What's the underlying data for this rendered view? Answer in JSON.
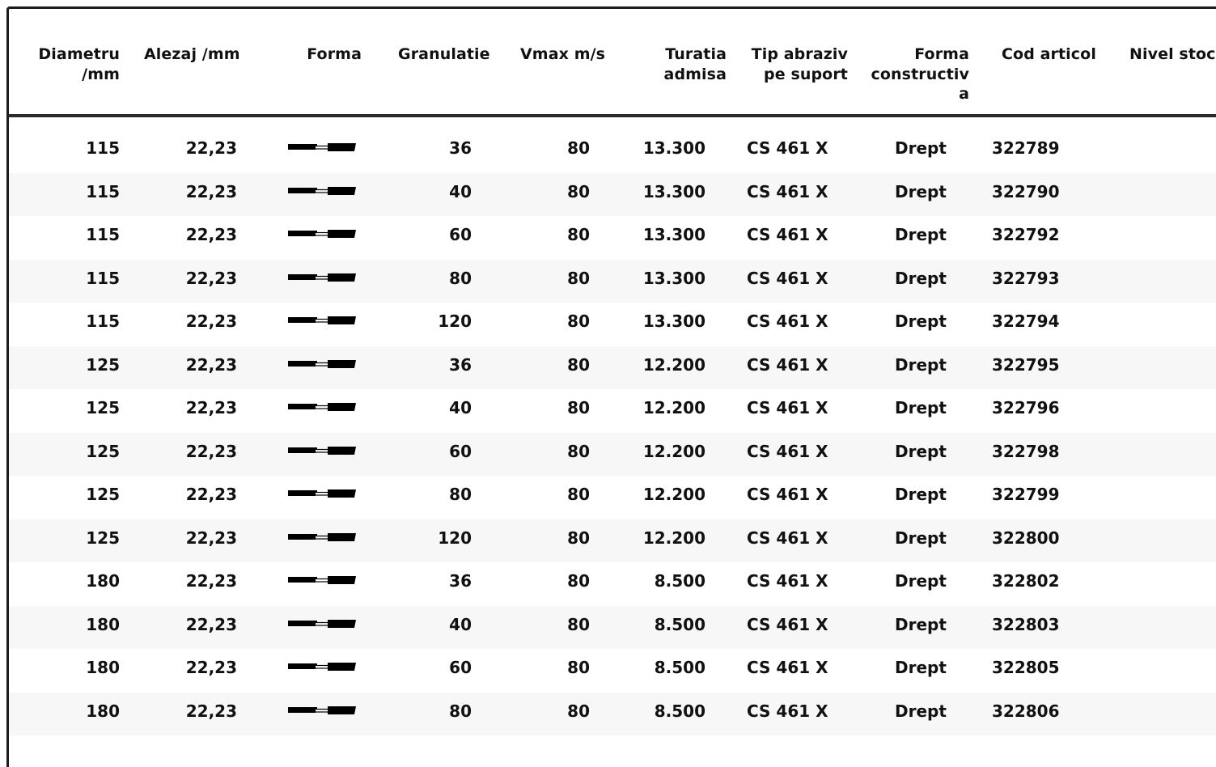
{
  "table": {
    "headers": {
      "diametru": "Diametru\n/mm",
      "alezaj": "Alezaj /mm",
      "forma": "Forma",
      "granulatie": "Granulatie",
      "vmax": "Vmax m/s",
      "turatia": "Turatia\nadmisa",
      "tip_abraziv": "Tip abraziv\npe suport",
      "forma_constructiva": "Forma\nconstructiv\na",
      "cod_articol": "Cod articol",
      "nivel_stoc": "Nivel stoc"
    },
    "forma_icon": "flat-flap-disc-profile-icon",
    "rows": [
      {
        "diametru": "115",
        "alezaj": "22,23",
        "granulatie": "36",
        "vmax": "80",
        "turatia": "13.300",
        "tip": "CS 461 X",
        "forma_c": "Drept",
        "cod": "322789",
        "stoc": ""
      },
      {
        "diametru": "115",
        "alezaj": "22,23",
        "granulatie": "40",
        "vmax": "80",
        "turatia": "13.300",
        "tip": "CS 461 X",
        "forma_c": "Drept",
        "cod": "322790",
        "stoc": ""
      },
      {
        "diametru": "115",
        "alezaj": "22,23",
        "granulatie": "60",
        "vmax": "80",
        "turatia": "13.300",
        "tip": "CS 461 X",
        "forma_c": "Drept",
        "cod": "322792",
        "stoc": ""
      },
      {
        "diametru": "115",
        "alezaj": "22,23",
        "granulatie": "80",
        "vmax": "80",
        "turatia": "13.300",
        "tip": "CS 461 X",
        "forma_c": "Drept",
        "cod": "322793",
        "stoc": ""
      },
      {
        "diametru": "115",
        "alezaj": "22,23",
        "granulatie": "120",
        "vmax": "80",
        "turatia": "13.300",
        "tip": "CS 461 X",
        "forma_c": "Drept",
        "cod": "322794",
        "stoc": ""
      },
      {
        "diametru": "125",
        "alezaj": "22,23",
        "granulatie": "36",
        "vmax": "80",
        "turatia": "12.200",
        "tip": "CS 461 X",
        "forma_c": "Drept",
        "cod": "322795",
        "stoc": ""
      },
      {
        "diametru": "125",
        "alezaj": "22,23",
        "granulatie": "40",
        "vmax": "80",
        "turatia": "12.200",
        "tip": "CS 461 X",
        "forma_c": "Drept",
        "cod": "322796",
        "stoc": ""
      },
      {
        "diametru": "125",
        "alezaj": "22,23",
        "granulatie": "60",
        "vmax": "80",
        "turatia": "12.200",
        "tip": "CS 461 X",
        "forma_c": "Drept",
        "cod": "322798",
        "stoc": ""
      },
      {
        "diametru": "125",
        "alezaj": "22,23",
        "granulatie": "80",
        "vmax": "80",
        "turatia": "12.200",
        "tip": "CS 461 X",
        "forma_c": "Drept",
        "cod": "322799",
        "stoc": ""
      },
      {
        "diametru": "125",
        "alezaj": "22,23",
        "granulatie": "120",
        "vmax": "80",
        "turatia": "12.200",
        "tip": "CS 461 X",
        "forma_c": "Drept",
        "cod": "322800",
        "stoc": ""
      },
      {
        "diametru": "180",
        "alezaj": "22,23",
        "granulatie": "36",
        "vmax": "80",
        "turatia": "8.500",
        "tip": "CS 461 X",
        "forma_c": "Drept",
        "cod": "322802",
        "stoc": ""
      },
      {
        "diametru": "180",
        "alezaj": "22,23",
        "granulatie": "40",
        "vmax": "80",
        "turatia": "8.500",
        "tip": "CS 461 X",
        "forma_c": "Drept",
        "cod": "322803",
        "stoc": ""
      },
      {
        "diametru": "180",
        "alezaj": "22,23",
        "granulatie": "60",
        "vmax": "80",
        "turatia": "8.500",
        "tip": "CS 461 X",
        "forma_c": "Drept",
        "cod": "322805",
        "stoc": ""
      },
      {
        "diametru": "180",
        "alezaj": "22,23",
        "granulatie": "80",
        "vmax": "80",
        "turatia": "8.500",
        "tip": "CS 461 X",
        "forma_c": "Drept",
        "cod": "322806",
        "stoc": ""
      }
    ]
  }
}
